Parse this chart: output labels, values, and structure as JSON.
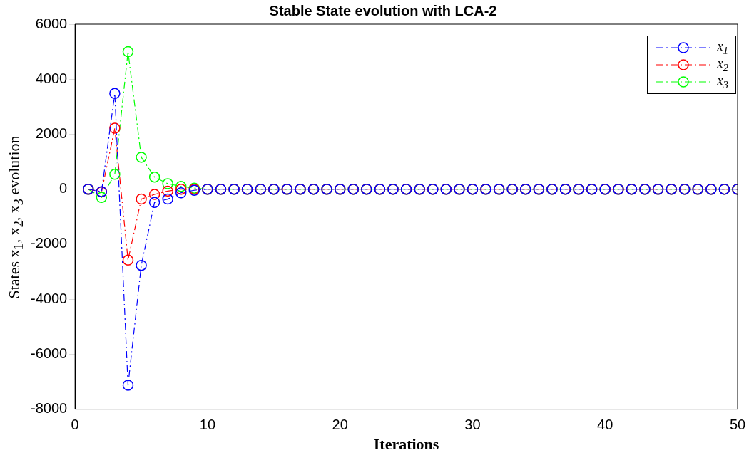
{
  "chart_data": {
    "type": "line",
    "title": "Stable State evolution with LCA-2",
    "xlabel": "Iterations",
    "ylabel": "States x$_{1}$, x$_{2}$, x$_{3}$ evolution",
    "x": [
      1,
      2,
      3,
      4,
      5,
      6,
      7,
      8,
      9,
      10,
      11,
      12,
      13,
      14,
      15,
      16,
      17,
      18,
      19,
      20,
      21,
      22,
      23,
      24,
      25,
      26,
      27,
      28,
      29,
      30,
      31,
      32,
      33,
      34,
      35,
      36,
      37,
      38,
      39,
      40,
      41,
      42,
      43,
      44,
      45,
      46,
      47,
      48,
      49,
      50
    ],
    "series": [
      {
        "name": "x$_{1}$",
        "color": "#0000ff",
        "values": [
          0,
          -90,
          3480,
          -7130,
          -2770,
          -480,
          -360,
          -130,
          -40,
          0,
          0,
          0,
          0,
          0,
          0,
          0,
          0,
          0,
          0,
          0,
          0,
          0,
          0,
          0,
          0,
          0,
          0,
          0,
          0,
          0,
          0,
          0,
          0,
          0,
          0,
          0,
          0,
          0,
          0,
          0,
          0,
          0,
          0,
          0,
          0,
          0,
          0,
          0,
          0,
          0
        ]
      },
      {
        "name": "x$_{2}$",
        "color": "#ff0000",
        "values": [
          0,
          -100,
          2220,
          -2580,
          -360,
          -190,
          -70,
          0,
          0,
          0,
          0,
          0,
          0,
          0,
          0,
          0,
          0,
          0,
          0,
          0,
          0,
          0,
          0,
          0,
          0,
          0,
          0,
          0,
          0,
          0,
          0,
          0,
          0,
          0,
          0,
          0,
          0,
          0,
          0,
          0,
          0,
          0,
          0,
          0,
          0,
          0,
          0,
          0,
          0,
          0
        ]
      },
      {
        "name": "x$_{3}$",
        "color": "#00ff00",
        "values": [
          0,
          -300,
          540,
          5000,
          1160,
          440,
          200,
          100,
          40,
          0,
          0,
          0,
          0,
          0,
          0,
          0,
          0,
          0,
          0,
          0,
          0,
          0,
          0,
          0,
          0,
          0,
          0,
          0,
          0,
          0,
          0,
          0,
          0,
          0,
          0,
          0,
          0,
          0,
          0,
          0,
          0,
          0,
          0,
          0,
          0,
          0,
          0,
          0,
          0,
          0
        ]
      }
    ],
    "xlim": [
      0,
      50
    ],
    "xticks": [
      0,
      10,
      20,
      30,
      40,
      50
    ],
    "ylim": [
      -8000,
      6000
    ],
    "yticks": [
      -8000,
      -6000,
      -4000,
      -2000,
      0,
      2000,
      4000,
      6000
    ],
    "grid": false,
    "legend": "top right",
    "marker": "circle",
    "line_style": "dashed"
  }
}
